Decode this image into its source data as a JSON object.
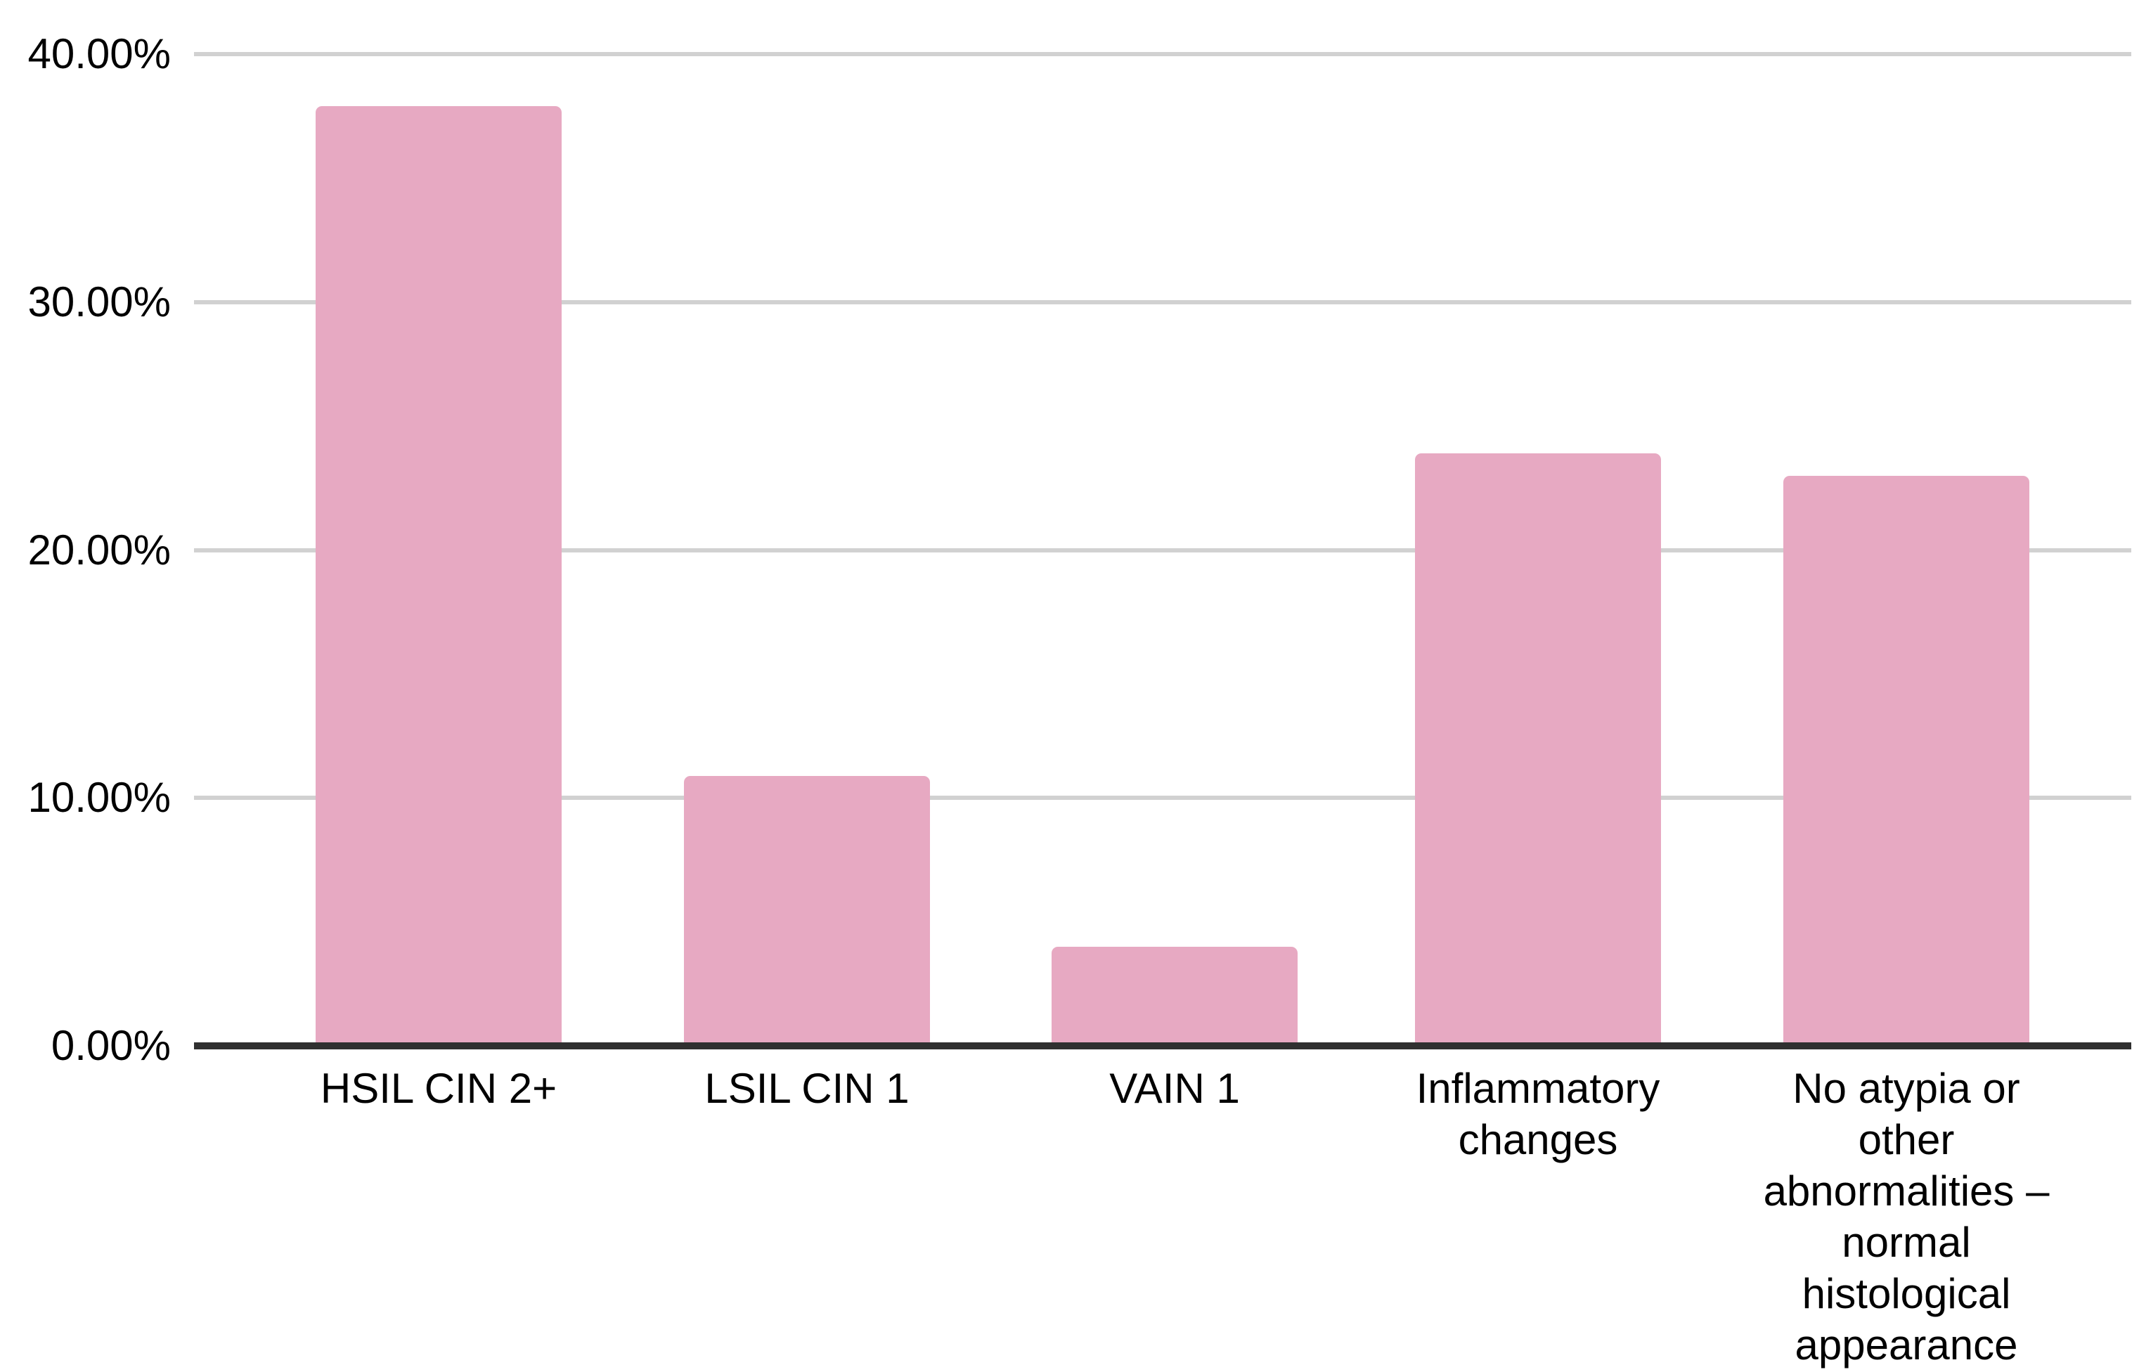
{
  "chart_data": {
    "type": "bar",
    "title": "",
    "xlabel": "",
    "ylabel": "",
    "categories": [
      "HSIL CIN 2+",
      "LSIL CIN 1",
      "VAIN 1",
      "Inflammatory changes",
      "No atypia or other abnormalities – normal histological appearance"
    ],
    "category_label_lines": [
      [
        "HSIL CIN 2+"
      ],
      [
        "LSIL CIN 1"
      ],
      [
        "VAIN 1"
      ],
      [
        "Inflammatory",
        "changes"
      ],
      [
        "No atypia or",
        "other",
        "abnormalities –",
        "normal",
        "histological",
        "appearance"
      ]
    ],
    "values": [
      37.9,
      10.9,
      4.0,
      23.9,
      23.0
    ],
    "unit": "%",
    "ylim": [
      0,
      40
    ],
    "y_tick_interval": 10,
    "y_tick_labels": [
      "0.00%",
      "10.00%",
      "20.00%",
      "30.00%",
      "40.00%"
    ],
    "grid": true,
    "legend": false,
    "colors": {
      "bar": "#E7A9C2",
      "gridline": "#D1D1D1",
      "axis": "#303030",
      "text": "#000000",
      "background": "#FFFFFF"
    }
  }
}
